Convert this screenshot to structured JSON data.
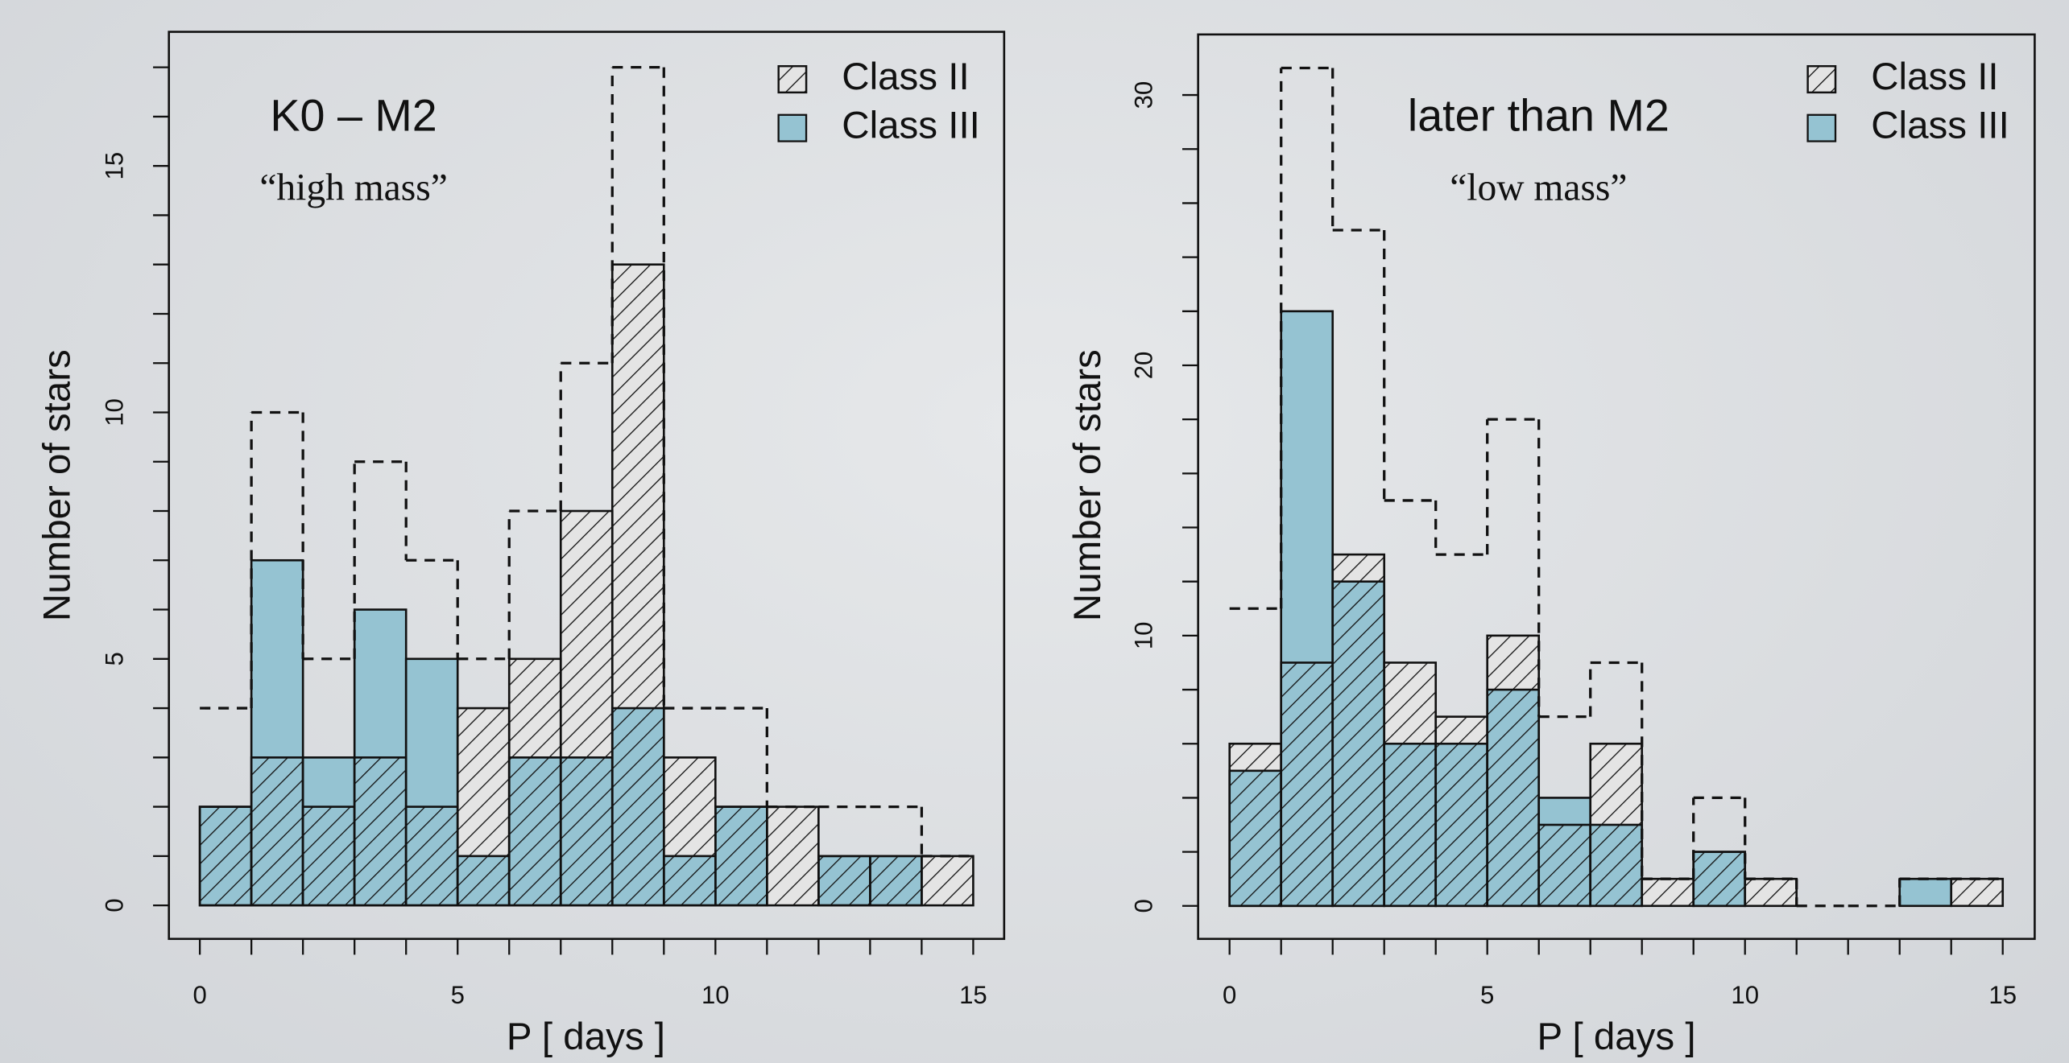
{
  "chart_data": [
    {
      "type": "histogram",
      "annotations": [
        "K0 – M2",
        "“high mass”"
      ],
      "xlabel": "P [ days ]",
      "ylabel": "Number of stars",
      "bins": [
        0,
        1,
        2,
        3,
        4,
        5,
        6,
        7,
        8,
        9,
        10,
        11,
        12,
        13,
        14,
        15
      ],
      "series": [
        {
          "name": "Class II",
          "color": "#e4e4e4",
          "hatch": true,
          "values": [
            2,
            3,
            2,
            3,
            2,
            4,
            5,
            8,
            13,
            3,
            2,
            2,
            1,
            1,
            1
          ]
        },
        {
          "name": "Class III",
          "color": "#95c3d2",
          "values": [
            2,
            7,
            3,
            6,
            5,
            1,
            3,
            3,
            4,
            1,
            2,
            0,
            1,
            1,
            0
          ]
        }
      ],
      "xlim": [
        -0.6,
        15.6
      ],
      "xticks": [
        0,
        5,
        10,
        15
      ],
      "xminorticks": [
        1,
        2,
        3,
        4,
        6,
        7,
        8,
        9,
        11,
        12,
        13,
        14
      ],
      "ylim": [
        -0.68,
        17.72
      ],
      "yticks": [
        0,
        5,
        10,
        15
      ],
      "yminorticks": [
        1,
        2,
        3,
        4,
        6,
        7,
        8,
        9,
        11,
        12,
        13,
        14,
        16,
        17
      ],
      "legend": "top-right"
    },
    {
      "type": "histogram",
      "annotations": [
        "later than M2",
        "“low mass”"
      ],
      "xlabel": "P [ days ]",
      "ylabel": "Number of stars",
      "bins": [
        0,
        1,
        2,
        3,
        4,
        5,
        6,
        7,
        8,
        9,
        10,
        11,
        12,
        13,
        14,
        15
      ],
      "series": [
        {
          "name": "Class II",
          "color": "#e4e4e4",
          "hatch": true,
          "values": [
            6,
            9,
            13,
            9,
            7,
            10,
            3,
            6,
            1,
            2,
            1,
            0,
            0,
            0,
            1
          ]
        },
        {
          "name": "Class III",
          "color": "#95c3d2",
          "values": [
            5,
            22,
            12,
            6,
            6,
            8,
            4,
            3,
            0,
            2,
            0,
            0,
            0,
            1,
            0
          ]
        }
      ],
      "xlim": [
        -0.61,
        15.62
      ],
      "xticks": [
        0,
        5,
        10,
        15
      ],
      "xminorticks": [
        1,
        2,
        3,
        4,
        6,
        7,
        8,
        9,
        11,
        12,
        13,
        14
      ],
      "ylim": [
        -1.22,
        32.24
      ],
      "yticks": [
        0,
        10,
        20,
        30
      ],
      "yminorticks": [
        2,
        4,
        6,
        8,
        12,
        14,
        16,
        18,
        22,
        24,
        26,
        28
      ],
      "legend": "top-right"
    }
  ]
}
